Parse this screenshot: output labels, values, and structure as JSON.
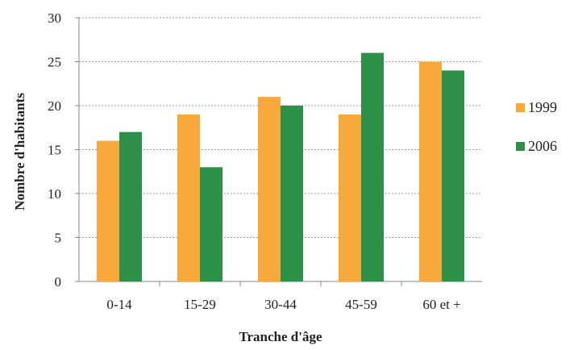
{
  "chart_data": {
    "type": "bar",
    "title": "",
    "xlabel": "Tranche d'âge",
    "ylabel": "Nombre d'habitants",
    "categories": [
      "0-14",
      "15-29",
      "30-44",
      "45-59",
      "60 et +"
    ],
    "series": [
      {
        "name": "1999",
        "color": "#F7A93C",
        "values": [
          16,
          19,
          21,
          19,
          25
        ]
      },
      {
        "name": "2006",
        "color": "#2E9148",
        "values": [
          17,
          13,
          20,
          26,
          24
        ]
      }
    ],
    "ylim": [
      0,
      30
    ],
    "yticks": [
      "0",
      "5",
      "10",
      "15",
      "20",
      "25",
      "30"
    ],
    "grid": true,
    "legend_position": "right"
  }
}
